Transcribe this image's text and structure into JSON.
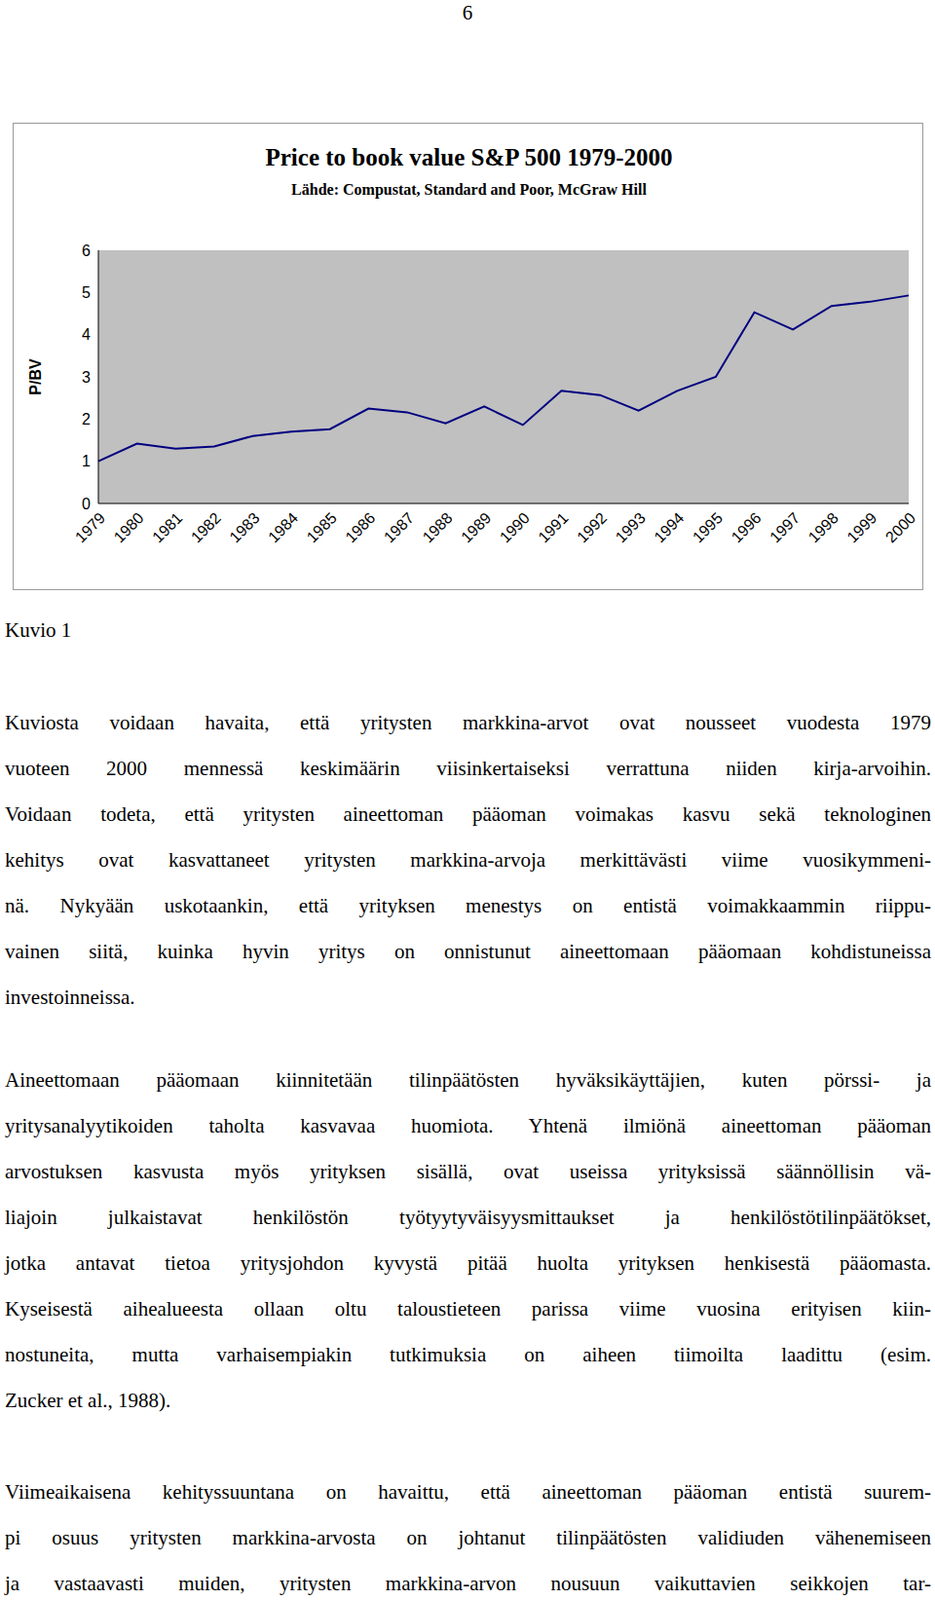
{
  "page_number": "6",
  "chart_data": {
    "type": "line",
    "title": "Price to book value S&P 500 1979-2000",
    "subtitle": "Lähde: Compustat, Standard and Poor, McGraw Hill",
    "y_label": "P/BV",
    "categories": [
      "1979",
      "1980",
      "1981",
      "1982",
      "1983",
      "1984",
      "1985",
      "1986",
      "1987",
      "1988",
      "1989",
      "1990",
      "1991",
      "1992",
      "1993",
      "1994",
      "1995",
      "1996",
      "1997",
      "1998",
      "1999",
      "2000"
    ],
    "values": [
      1.0,
      1.42,
      1.3,
      1.35,
      1.6,
      1.7,
      1.76,
      2.25,
      2.16,
      1.9,
      2.3,
      1.86,
      2.67,
      2.57,
      2.2,
      2.67,
      3.0,
      4.53,
      4.12,
      4.68,
      4.78,
      4.93
    ],
    "color": "#000080",
    "ylim": [
      0,
      6
    ],
    "yticks": [
      0,
      1,
      2,
      3,
      4,
      5,
      6
    ],
    "grid": false
  },
  "caption": "Kuvio 1",
  "paragraphs": [
    [
      "Kuviosta voidaan havaita, että yritysten markkina-arvot ovat nousseet vuodesta 1979",
      "vuoteen 2000 mennessä keskimäärin viisinkertaiseksi verrattuna niiden kirja-arvoihin.",
      "Voidaan todeta, että yritysten aineettoman pääoman voimakas kasvu sekä teknologinen",
      "kehitys ovat kasvattaneet yritysten markkina-arvoja merkittävästi viime vuosikymmeni-",
      "nä. Nykyään uskotaankin, että yrityksen menestys on entistä voimakkaammin riippu-",
      "vainen siitä, kuinka hyvin yritys on onnistunut aineettomaan pääomaan kohdistuneissa",
      "investoinneissa."
    ],
    [
      "Aineettomaan pääomaan kiinnitetään tilinpäätösten hyväksikäyttäjien, kuten pörssi- ja",
      "yritysanalyytikoiden taholta kasvavaa huomiota. Yhtenä ilmiönä aineettoman pääoman",
      "arvostuksen kasvusta myös yrityksen sisällä, ovat useissa yrityksissä säännöllisin vä-",
      "liajoin julkaistavat henkilöstön työtyytyväisyysmittaukset ja henkilöstötilinpäätökset,",
      "jotka antavat tietoa yritysjohdon kyvystä pitää huolta yrityksen henkisestä pääomasta.",
      "Kyseisestä aihealueesta ollaan oltu taloustieteen parissa viime vuosina erityisen kiin-",
      "nostuneita, mutta varhaisempiakin tutkimuksia on aiheen tiimoilta laadittu (esim.",
      "Zucker et al., 1988)."
    ],
    [
      "Viimeaikaisena kehityssuuntana on havaittu, että aineettoman pääoman entistä suurem-",
      "pi osuus yritysten markkina-arvosta on johtanut tilinpäätösten validiuden vähenemiseen",
      "ja vastaavasti muiden, yritysten markkina-arvon nousuun vaikuttavien seikkojen tar-"
    ]
  ]
}
